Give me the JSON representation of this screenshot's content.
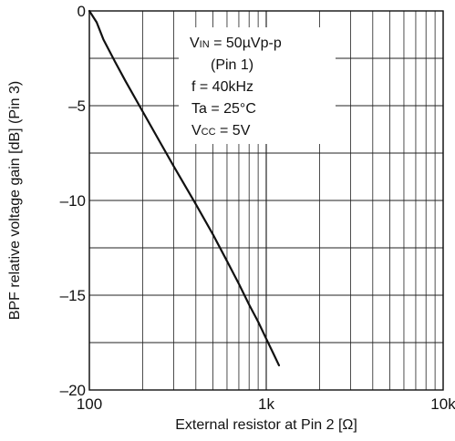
{
  "chart_data": {
    "type": "line",
    "title": "",
    "xlabel": "External resistor at Pin 2 [Ω]",
    "ylabel": "BPF relative voltage gain [dB] (Pin 3)",
    "x_scale": "log",
    "xlim": [
      100,
      10000
    ],
    "ylim": [
      -20,
      0
    ],
    "grid": true,
    "x_ticks": [
      {
        "value": 100,
        "label": "100"
      },
      {
        "value": 1000,
        "label": "1k"
      },
      {
        "value": 10000,
        "label": "10k"
      }
    ],
    "y_ticks": [
      {
        "value": 0,
        "label": "0"
      },
      {
        "value": -5,
        "label": "–5"
      },
      {
        "value": -10,
        "label": "–10"
      },
      {
        "value": -15,
        "label": "–15"
      },
      {
        "value": -20,
        "label": "–20"
      }
    ],
    "series": [
      {
        "name": "",
        "color": "#111111",
        "points": [
          [
            100,
            0
          ],
          [
            110,
            -0.6
          ],
          [
            120,
            -1.5
          ],
          [
            140,
            -2.7
          ],
          [
            160,
            -3.7
          ],
          [
            200,
            -5.3
          ],
          [
            250,
            -6.9
          ],
          [
            300,
            -8.2
          ],
          [
            400,
            -10.2
          ],
          [
            500,
            -11.8
          ],
          [
            600,
            -13.2
          ],
          [
            700,
            -14.4
          ],
          [
            800,
            -15.5
          ],
          [
            900,
            -16.4
          ],
          [
            1000,
            -17.3
          ],
          [
            1100,
            -18.1
          ],
          [
            1180,
            -18.7
          ]
        ]
      }
    ],
    "annotation": {
      "lines": [
        {
          "main": "V",
          "sub": "IN",
          "rest": " = 50µVp-p"
        },
        {
          "main": "(Pin 1)",
          "sub": "",
          "rest": ""
        },
        {
          "main": "f = 40kHz",
          "sub": "",
          "rest": ""
        },
        {
          "main": "Ta = 25°C",
          "sub": "",
          "rest": ""
        },
        {
          "main": "V",
          "sub": "CC",
          "rest": " = 5V"
        }
      ]
    }
  }
}
